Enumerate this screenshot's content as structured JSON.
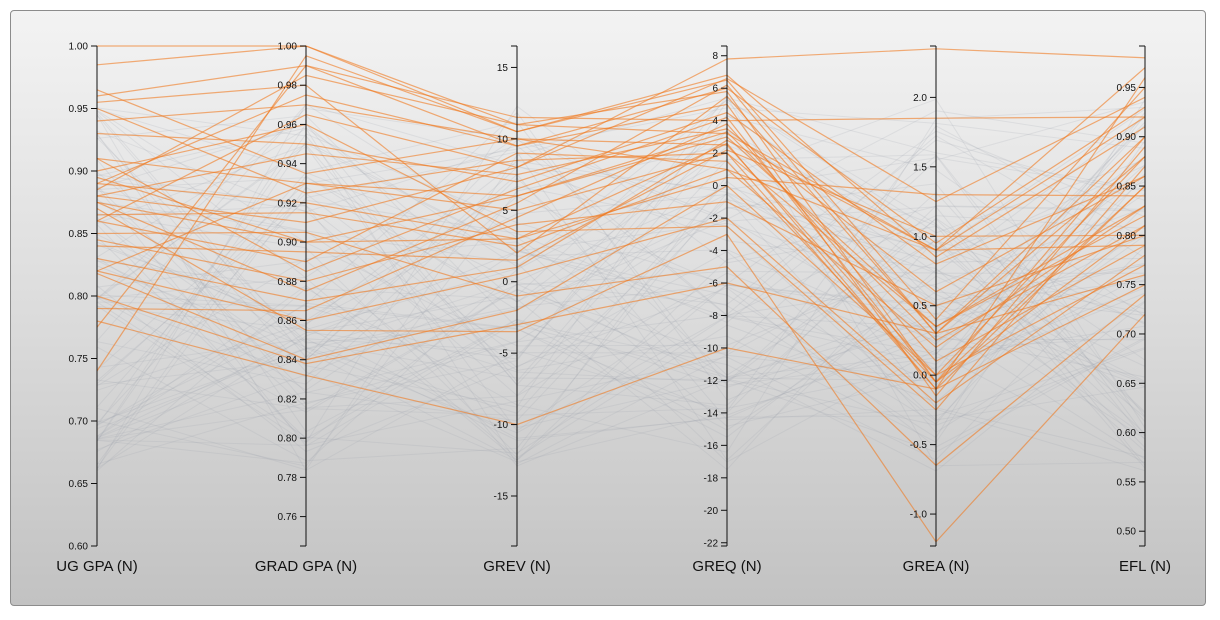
{
  "chart_data": {
    "type": "parallel-coordinates",
    "axes": [
      {
        "label": "UG GPA (N)",
        "range": [
          0.6,
          1.0
        ],
        "ticks": [
          "0.60",
          "0.65",
          "0.70",
          "0.75",
          "0.80",
          "0.85",
          "0.90",
          "0.95",
          "1.00"
        ],
        "tick_values": [
          0.6,
          0.65,
          0.7,
          0.75,
          0.8,
          0.85,
          0.9,
          0.95,
          1.0
        ]
      },
      {
        "label": "GRAD GPA (N)",
        "range": [
          0.745,
          1.0
        ],
        "ticks": [
          "0.76",
          "0.78",
          "0.80",
          "0.82",
          "0.84",
          "0.86",
          "0.88",
          "0.90",
          "0.92",
          "0.94",
          "0.96",
          "0.98",
          "1.00"
        ],
        "tick_values": [
          0.76,
          0.78,
          0.8,
          0.82,
          0.84,
          0.86,
          0.88,
          0.9,
          0.92,
          0.94,
          0.96,
          0.98,
          1.0
        ]
      },
      {
        "label": "GREV (N)",
        "range": [
          -18.5,
          16.5
        ],
        "ticks": [
          "-15",
          "-10",
          "-5",
          "0",
          "5",
          "10",
          "15"
        ],
        "tick_values": [
          -15,
          -10,
          -5,
          0,
          5,
          10,
          15
        ]
      },
      {
        "label": "GREQ (N)",
        "range": [
          -22.2,
          8.6
        ],
        "ticks": [
          "-22",
          "-20",
          "-18",
          "-16",
          "-14",
          "-12",
          "-10",
          "-8",
          "-6",
          "-4",
          "-2",
          "0",
          "2",
          "4",
          "6",
          "8"
        ],
        "tick_values": [
          -22,
          -20,
          -18,
          -16,
          -14,
          -12,
          -10,
          -8,
          -6,
          -4,
          -2,
          0,
          2,
          4,
          6,
          8
        ]
      },
      {
        "label": "GREA (N)",
        "range": [
          -1.23,
          2.37
        ],
        "ticks": [
          "-1.0",
          "-0.5",
          "0.0",
          "0.5",
          "1.0",
          "1.5",
          "2.0"
        ],
        "tick_values": [
          -1.0,
          -0.5,
          0.0,
          0.5,
          1.0,
          1.5,
          2.0
        ]
      },
      {
        "label": "EFL (N)",
        "range": [
          0.485,
          0.992
        ],
        "ticks": [
          "0.50",
          "0.55",
          "0.60",
          "0.65",
          "0.70",
          "0.75",
          "0.80",
          "0.85",
          "0.90",
          "0.95"
        ],
        "tick_values": [
          0.5,
          0.55,
          0.6,
          0.65,
          0.7,
          0.75,
          0.8,
          0.85,
          0.9,
          0.95
        ]
      }
    ],
    "highlighted_color": "#f0791f",
    "background_line_color": "#9aa3ad",
    "highlighted_lines": [
      [
        1.0,
        1.0,
        11.0,
        3.2,
        0.9,
        0.97
      ],
      [
        0.985,
        1.0,
        10.5,
        6.5,
        0.4,
        0.95
      ],
      [
        0.96,
        0.99,
        9.5,
        6.0,
        0.95,
        0.93
      ],
      [
        0.955,
        0.98,
        2.0,
        5.5,
        0.3,
        0.9
      ],
      [
        0.94,
        0.97,
        10.0,
        2.5,
        0.0,
        0.88
      ],
      [
        0.93,
        0.95,
        7.0,
        4.5,
        0.8,
        0.86
      ],
      [
        0.91,
        0.93,
        5.0,
        2.0,
        -0.1,
        0.85
      ],
      [
        0.89,
        0.92,
        3.0,
        0.5,
        1.3,
        0.84
      ],
      [
        0.88,
        0.91,
        8.0,
        7.8,
        2.35,
        0.98
      ],
      [
        0.875,
        0.9,
        6.0,
        3.0,
        0.35,
        0.82
      ],
      [
        0.86,
        0.89,
        9.0,
        1.5,
        -0.05,
        0.81
      ],
      [
        0.845,
        0.88,
        4.0,
        -1.0,
        0.5,
        0.8
      ],
      [
        0.83,
        0.87,
        1.0,
        2.8,
        0.9,
        0.79
      ],
      [
        0.82,
        0.86,
        0.5,
        -2.0,
        -0.2,
        0.78
      ],
      [
        0.818,
        0.84,
        -2.0,
        0.0,
        0.0,
        0.77
      ],
      [
        0.8,
        0.838,
        -3.0,
        -6.0,
        0.3,
        0.76
      ],
      [
        0.78,
        0.832,
        -10.0,
        -10.0,
        -0.1,
        0.75
      ],
      [
        0.775,
        0.99,
        11.5,
        4.0,
        1.85,
        0.92
      ],
      [
        0.74,
        0.995,
        10.5,
        6.8,
        0.85,
        0.91
      ],
      [
        0.89,
        0.975,
        9.5,
        5.0,
        -0.15,
        0.89
      ],
      [
        0.9,
        0.96,
        3.5,
        -2.5,
        -0.25,
        0.87
      ],
      [
        0.88,
        0.945,
        7.5,
        3.5,
        0.6,
        0.86
      ],
      [
        0.865,
        0.915,
        2.5,
        1.0,
        0.2,
        0.83
      ],
      [
        0.85,
        0.905,
        -1.0,
        -5.0,
        -0.65,
        0.74
      ],
      [
        0.84,
        0.895,
        1.5,
        2.2,
        1.0,
        0.8
      ],
      [
        0.875,
        0.875,
        5.5,
        6.2,
        0.3,
        0.88
      ],
      [
        0.91,
        0.885,
        6.5,
        4.2,
        -0.05,
        0.85
      ],
      [
        0.95,
        0.925,
        8.5,
        2.0,
        0.35,
        0.83
      ],
      [
        0.965,
        0.935,
        10.0,
        1.0,
        0.9,
        0.92
      ],
      [
        0.87,
        0.855,
        -3.5,
        -3.0,
        -1.2,
        0.72
      ],
      [
        0.79,
        0.865,
        4.5,
        3.8,
        0.1,
        0.79
      ],
      [
        0.885,
        0.985,
        11.0,
        5.8,
        -0.05,
        0.9
      ],
      [
        0.86,
        0.965,
        8.0,
        6.6,
        1.25,
        0.94
      ],
      [
        0.82,
        0.93,
        6.0,
        3.3,
        0.25,
        0.81
      ],
      [
        0.895,
        0.9,
        3.0,
        2.6,
        -0.1,
        0.96
      ]
    ],
    "background_line_count": 90
  }
}
